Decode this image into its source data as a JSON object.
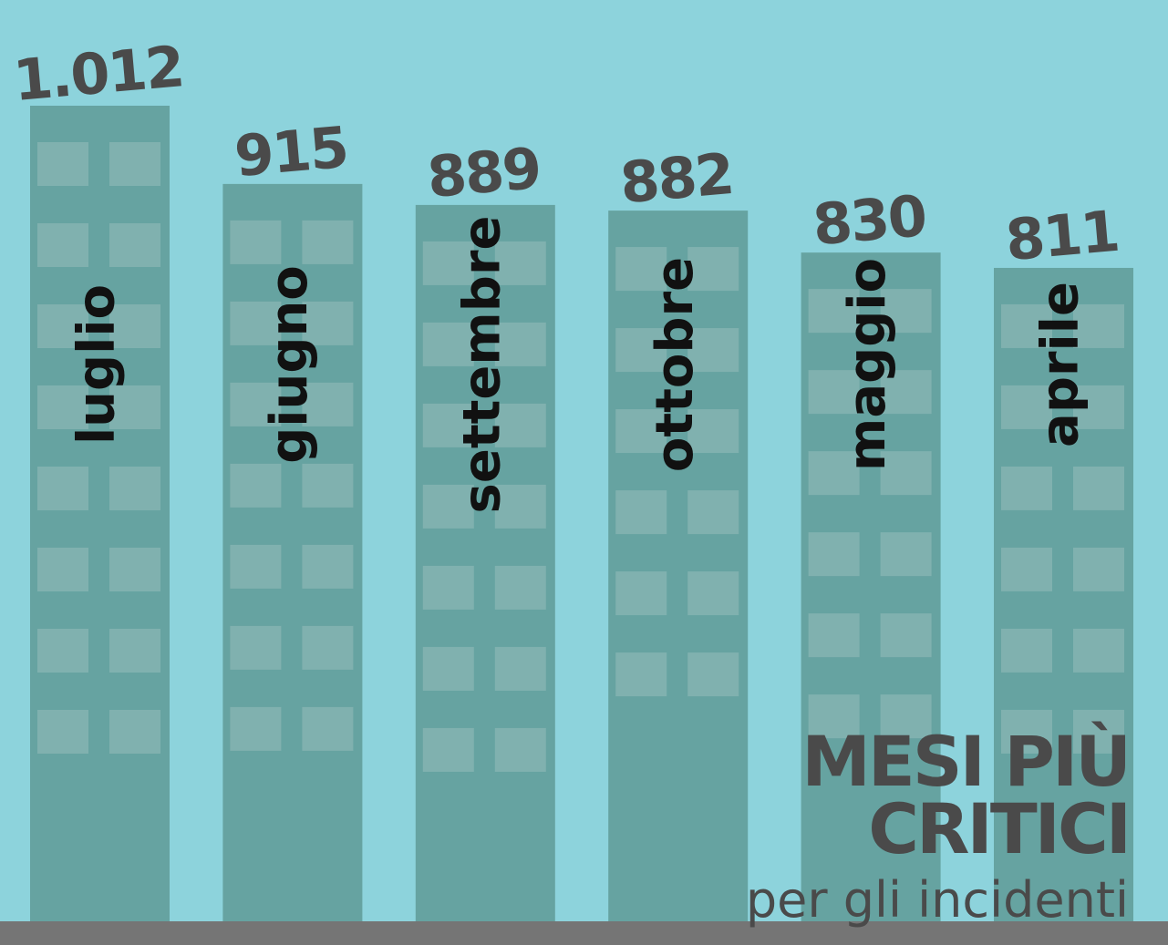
{
  "chart_data": {
    "type": "bar",
    "title": "MESI PIÙ CRITICI",
    "subtitle": "per gli incidenti",
    "categories": [
      "luglio",
      "giugno",
      "settembre",
      "ottobre",
      "maggio",
      "aprile"
    ],
    "values": [
      1012,
      915,
      889,
      882,
      830,
      811
    ],
    "value_labels": [
      "1.012",
      "915",
      "889",
      "882",
      "830",
      "811"
    ],
    "color": "#66a3a1"
  }
}
